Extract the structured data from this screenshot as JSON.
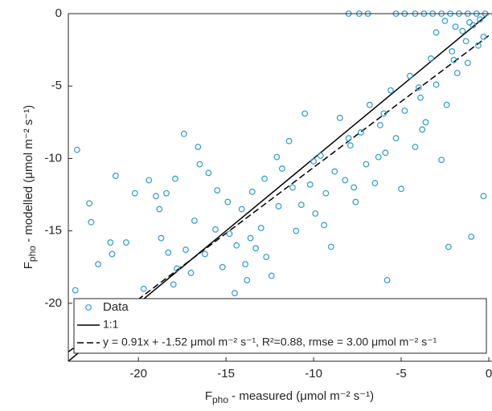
{
  "chart_data": {
    "type": "scatter",
    "x_label": {
      "main": "F",
      "sub": "pho",
      "rest": " - measured (μmol m⁻² s⁻¹)"
    },
    "y_label": {
      "main": "F",
      "sub": "pho",
      "rest": " - modelled (μmol m⁻² s⁻¹)"
    },
    "xlim": [
      -24,
      0
    ],
    "ylim": [
      -24,
      0
    ],
    "xticks": [
      -20,
      -15,
      -10,
      -5,
      0
    ],
    "yticks": [
      -20,
      -15,
      -10,
      -5,
      0
    ],
    "series": [
      {
        "name": "Data",
        "color": "#2a9bd3",
        "x": [
          -23.5,
          -23.6,
          -22.7,
          -22.8,
          -22.3,
          -21.6,
          -21.3,
          -20.7,
          -21.5,
          -20.2,
          -19.4,
          -19.0,
          -18.8,
          -18.4,
          -17.9,
          -17.4,
          -16.6,
          -16.5,
          -18.7,
          -18.3,
          -17.8,
          -17.3,
          -16.8,
          -16.2,
          -15.6,
          -15.2,
          -14.8,
          -14.4,
          -14.1,
          -13.9,
          -13.6,
          -13.3,
          -13.0,
          -12.7,
          -12.4,
          -13.5,
          -12.1,
          -11.8,
          -11.4,
          -11.0,
          -10.7,
          -10.5,
          -10.2,
          -9.9,
          -9.6,
          -9.3,
          -9.0,
          -8.8,
          -8.5,
          -8.2,
          -7.9,
          -7.6,
          -7.3,
          -7.0,
          -6.8,
          -6.5,
          -6.2,
          -5.9,
          -5.6,
          -5.3,
          -5.0,
          -4.8,
          -4.5,
          -4.2,
          -3.9,
          -3.6,
          -3.3,
          -3.0,
          -2.7,
          -2.4,
          -2.1,
          -1.8,
          -1.5,
          -1.2,
          -0.9,
          -0.6,
          -0.3,
          -1.0,
          -2.3,
          -5.8,
          -14.5,
          -19.7,
          -15.5,
          -16.0,
          -12.0,
          -11.2,
          -10.0,
          -8.0,
          -6.0,
          -4.0,
          -2.0,
          -1.3,
          -9.4,
          -7.7,
          -6.3,
          -3.8,
          -12.8,
          -14.9,
          -17.0,
          -18.0,
          -13.8,
          -8.0,
          -7.4,
          -6.9,
          -5.3,
          -4.8,
          -4.2,
          -3.7,
          -3.2,
          -2.7,
          -2.2,
          -1.7,
          -1.2,
          -0.7,
          -0.2,
          -2.5,
          -1.9,
          -0.5,
          -1.1,
          -3.0,
          -0.3
        ],
        "y": [
          -9.4,
          -19.1,
          -14.4,
          -13.1,
          -17.3,
          -15.8,
          -11.2,
          -15.8,
          -16.6,
          -12.4,
          -11.5,
          -12.6,
          -13.5,
          -12.4,
          -11.4,
          -8.3,
          -9.2,
          -10.4,
          -15.5,
          -16.5,
          -17.6,
          -16.3,
          -14.3,
          -16.6,
          -14.9,
          -17.5,
          -15.2,
          -16.0,
          -13.5,
          -17.3,
          -15.5,
          -16.2,
          -14.8,
          -16.8,
          -18.1,
          -12.3,
          -9.9,
          -10.7,
          -8.8,
          -15.0,
          -13.2,
          -6.9,
          -11.8,
          -13.8,
          -9.8,
          -12.4,
          -16.1,
          -10.9,
          -7.2,
          -11.5,
          -9.1,
          -13.0,
          -8.2,
          -10.4,
          -6.3,
          -11.7,
          -7.7,
          -9.6,
          -5.3,
          -8.6,
          -12.1,
          -6.7,
          -4.3,
          -9.2,
          -5.8,
          -7.5,
          -3.1,
          -4.9,
          -10.1,
          -6.3,
          -2.6,
          -4.1,
          -1.2,
          -3.4,
          -0.8,
          -2.2,
          -12.6,
          -15.4,
          -16.1,
          -18.4,
          -19.3,
          -19.0,
          -12.2,
          -11.0,
          -13.3,
          -12.0,
          -10.2,
          -8.6,
          -6.9,
          -5.1,
          -3.2,
          -1.9,
          -14.6,
          -12.0,
          -9.9,
          -8.0,
          -11.4,
          -13.0,
          -17.9,
          -18.7,
          -18.4,
          0,
          0,
          0,
          0,
          0,
          0,
          0,
          0,
          0,
          0,
          0,
          0,
          0,
          0,
          -0.5,
          -0.9,
          -0.4,
          -0.6,
          -1.3,
          -1.6
        ]
      }
    ],
    "lines": [
      {
        "name": "1:1",
        "slope": 1,
        "intercept": 0,
        "dashed": false,
        "color": "#000000"
      },
      {
        "name": "y = 0.91x + -1.52 μmol m⁻² s⁻¹, R²=0.88, rmse = 3.00 μmol m⁻² s⁻¹",
        "slope": 0.91,
        "intercept": -1.52,
        "dashed": true,
        "color": "#000000"
      }
    ]
  }
}
